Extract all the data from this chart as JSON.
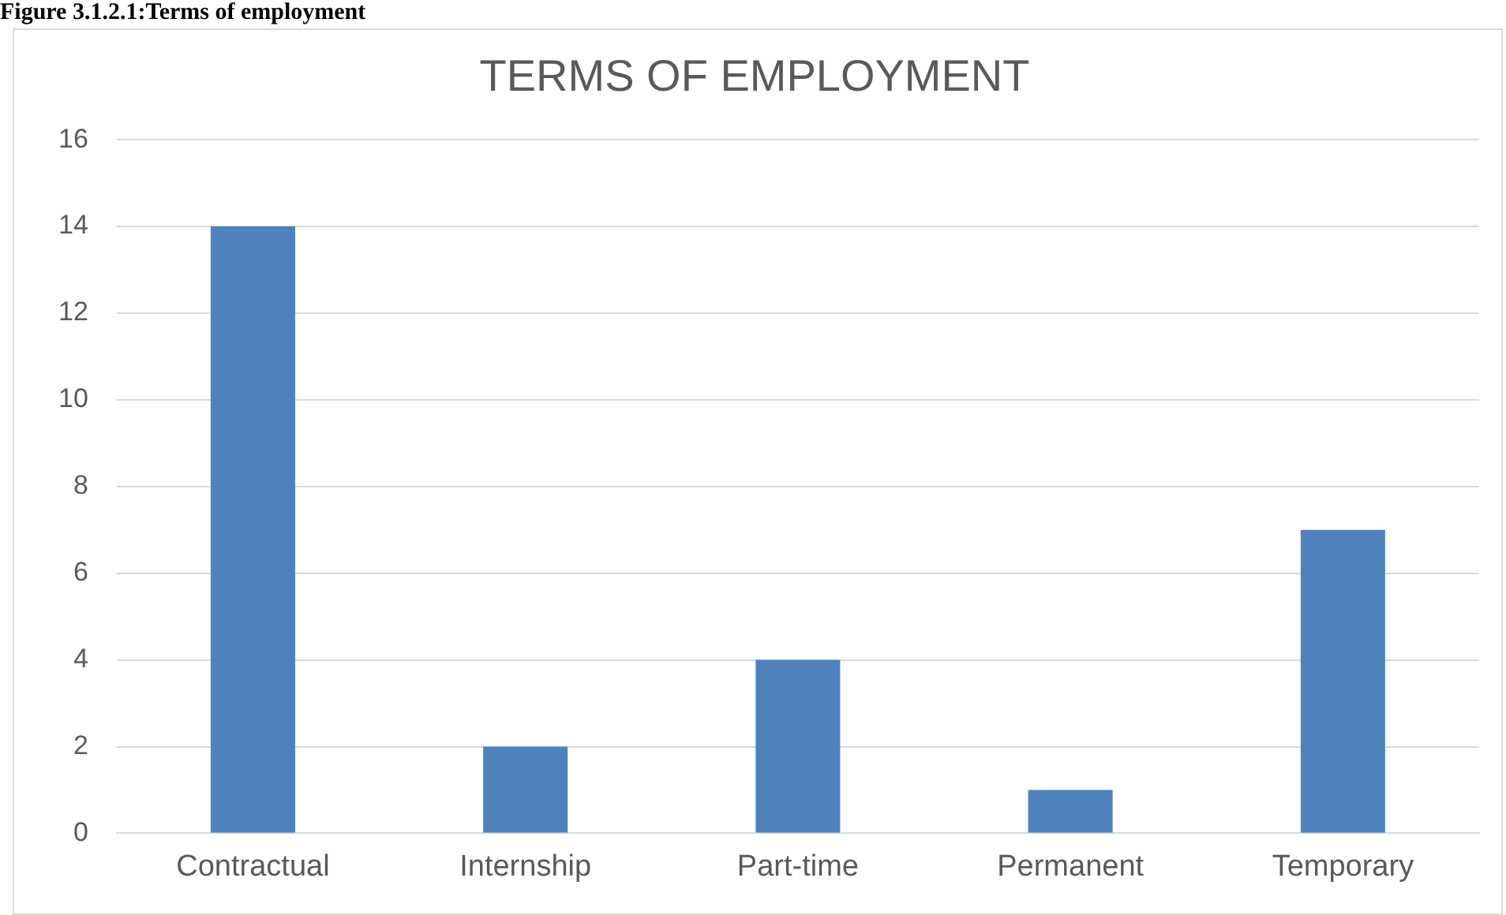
{
  "chart_data": {
    "type": "bar",
    "title": "TERMS OF EMPLOYMENT",
    "annotations": [
      "Figure 3.1.2.1:Terms of employment"
    ],
    "categories": [
      "Contractual",
      "Internship",
      "Part-time",
      "Permanent",
      "Temporary"
    ],
    "values": [
      14,
      2,
      4,
      1,
      7
    ],
    "color": "#4f81bd",
    "ylim": [
      0,
      16
    ],
    "yticks": [
      0,
      2,
      4,
      6,
      8,
      10,
      12,
      14,
      16
    ],
    "grid": "y",
    "legend": false
  }
}
